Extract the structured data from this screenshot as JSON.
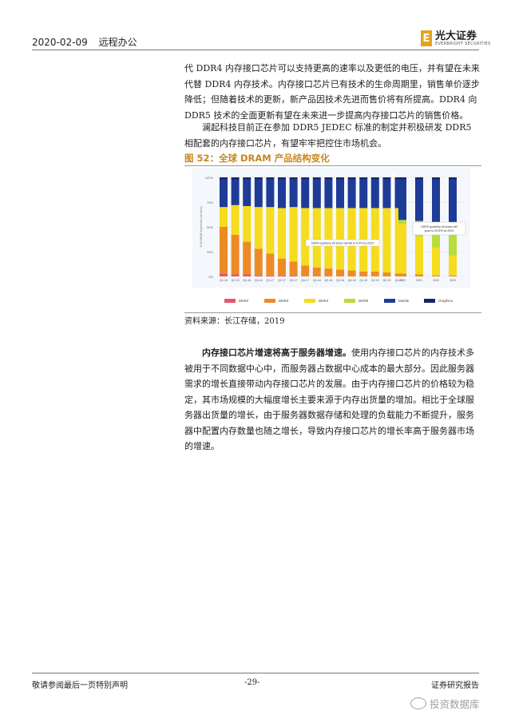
{
  "header": {
    "date": "2020-02-09",
    "tag": "远程办公"
  },
  "logo": {
    "mark": "E",
    "name": "光大证券",
    "en": "EVERBRIGHT SECURITIES"
  },
  "paragraph1": "代 DDR4 内存接口芯片可以支持更高的速率以及更低的电压，并有望在未来代替 DDR4 内存技术。内存接口芯片已有技术的生命周期里，销售单价逐步降低；但随着技术的更新，新产品因技术先进而售价将有所提高。DDR4 向 DDR5 技术的全面更新有望在未来进一步提高内存接口芯片的销售价格。",
  "paragraph2": "澜起科技目前正在参加 DDR5 JEDEC 标准的制定并积极研发 DDR5 相配套的内存接口芯片，有望牢牢把控住市场机会。",
  "figure_title": "图 52：全球 DRAM 产品结构变化",
  "source": "资料来源：长江存储，2019",
  "paragraph3": {
    "bold": "内存接口芯片增速将高于服务器增速。",
    "rest": "使用内存接口芯片的内存技术多被用于不同数据中心中，而服务器占数据中心成本的最大部分。因此服务器需求的增长直接带动内存接口芯片的发展。由于内存接口芯片的价格较为稳定，其市场规模的大幅度增长主要来源于内存出货量的增加。相比于全球服务器出货量的增长，由于服务器数据存储和处理的负载能力不断提升，服务器中配置内存数量也随之增长，导致内存接口芯片的增长率高于服务器市场的增速。"
  },
  "footer": {
    "left": "敬请参阅最后一页特别声明",
    "page": "-29-",
    "right": "证券研究报告"
  },
  "watermark": "投资数据库",
  "chart_data": {
    "type": "bar",
    "stacked": true,
    "ylabel": "% of DRAM shipments (bit basis)",
    "ylim": [
      0,
      100
    ],
    "ytick_labels": [
      "0%",
      "25%",
      "50%",
      "75%",
      "100%"
    ],
    "gridlines": true,
    "categories": [
      "Q1-16",
      "Q2-16",
      "Q3-16",
      "Q4-16",
      "Q1-17",
      "Q2-17",
      "Q3-17",
      "Q4-17",
      "Q1-18",
      "Q2-18",
      "Q3-18",
      "Q4-18",
      "Q1-19",
      "Q2-19",
      "Q3-19",
      "Q4-19",
      "2020",
      "2021",
      "2022",
      "2023"
    ],
    "series": [
      {
        "name": "DDR2",
        "color": "#e8566b",
        "values": [
          3,
          2,
          2,
          1,
          1,
          1,
          1,
          0,
          0,
          0,
          0,
          0,
          0,
          0,
          0,
          0,
          0,
          0,
          0,
          0
        ]
      },
      {
        "name": "DDR3",
        "color": "#ee8a26",
        "values": [
          47,
          40,
          33,
          27,
          22,
          17,
          14,
          11,
          9,
          8,
          7,
          6,
          5,
          5,
          4,
          3,
          3,
          2,
          1,
          1
        ]
      },
      {
        "name": "DDR4",
        "color": "#f5dc1e",
        "values": [
          20,
          30,
          36,
          42,
          47,
          51,
          55,
          58,
          60,
          61,
          62,
          63,
          64,
          64,
          65,
          66,
          50,
          38,
          28,
          20
        ]
      },
      {
        "name": "DDR5",
        "color": "#b8dc3a",
        "values": [
          0,
          0,
          0,
          0,
          0,
          0,
          0,
          0,
          0,
          0,
          0,
          0,
          0,
          0,
          0,
          0,
          4,
          16,
          26,
          33
        ]
      },
      {
        "name": "Mobile",
        "color": "#1f3b98",
        "values": [
          28,
          26,
          27,
          28,
          28,
          29,
          28,
          29,
          29,
          29,
          29,
          29,
          29,
          29,
          29,
          29,
          41,
          42,
          43,
          44
        ]
      },
      {
        "name": "Graphics",
        "color": "#182468",
        "values": [
          2,
          2,
          2,
          2,
          2,
          2,
          2,
          2,
          2,
          2,
          2,
          2,
          2,
          2,
          2,
          2,
          2,
          2,
          2,
          2
        ]
      }
    ],
    "annotations": [
      "DDR4 quarterly bit share will fall to 5.4% by 2023",
      "DDR5 quarterly bit share will grow to 53.8% by 2023"
    ],
    "legend_position": "bottom"
  }
}
